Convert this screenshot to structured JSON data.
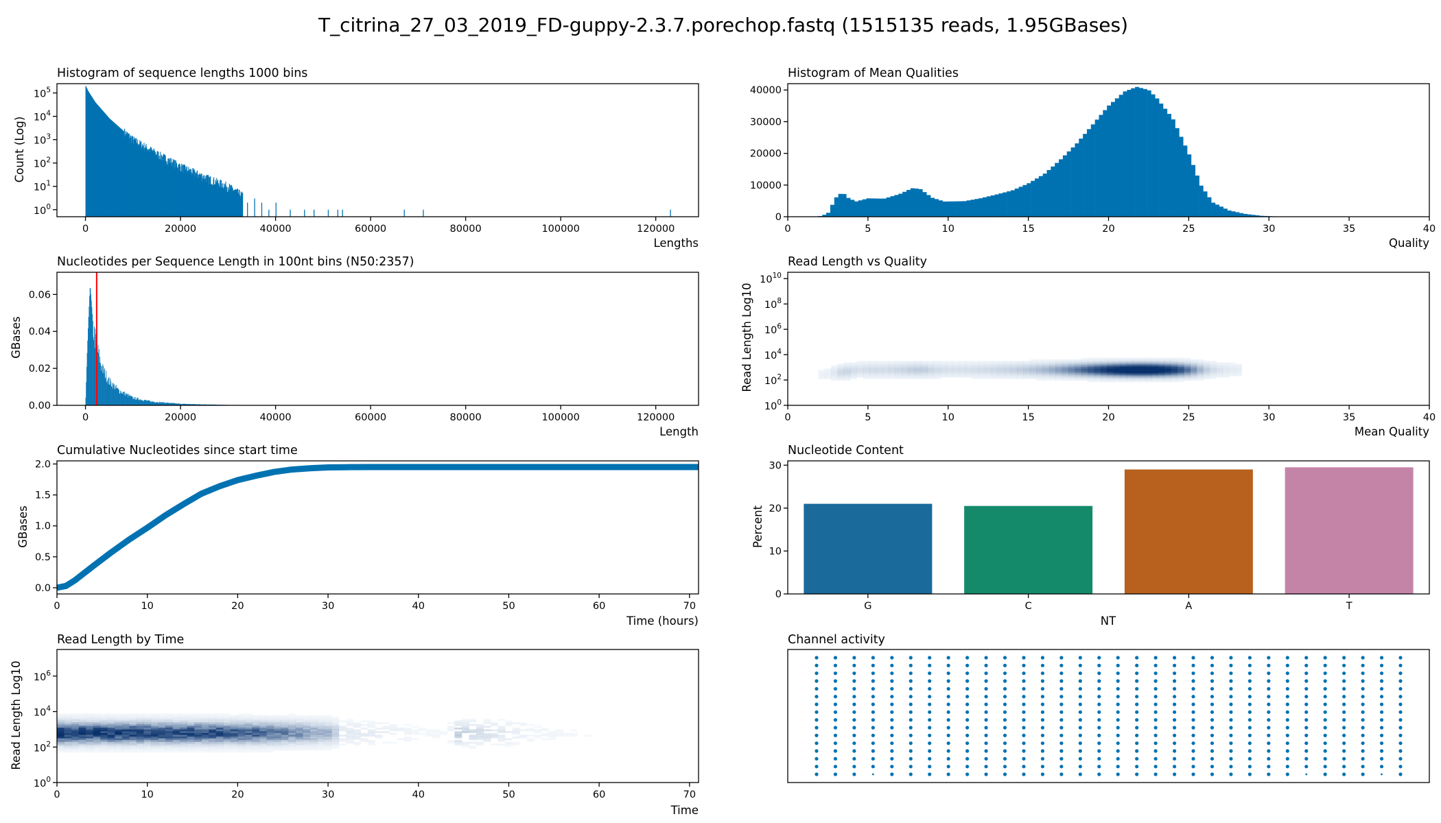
{
  "title": "T_citrina_27_03_2019_FD-guppy-2.3.7.porechop.fastq (1515135 reads, 1.95GBases)",
  "colors": {
    "blue": "#0072b2",
    "red": "#ff0000",
    "nt": [
      "#1a6a9c",
      "#158a6a",
      "#b8611e",
      "#c484a8"
    ],
    "dense": "#08306b"
  },
  "chart_data": [
    {
      "id": "len_hist",
      "type": "bar",
      "title": "Histogram of sequence lengths 1000 bins",
      "xlabel": "Lengths",
      "ylabel": "Count (Log)",
      "xlim": [
        -6000,
        129000
      ],
      "ylim": [
        0.5,
        250000
      ],
      "yscale": "log",
      "xticks": [
        0,
        20000,
        40000,
        60000,
        80000,
        100000,
        120000
      ],
      "yticks": [
        {
          "v": 1,
          "l": "10",
          "e": "0"
        },
        {
          "v": 10,
          "l": "10",
          "e": "1"
        },
        {
          "v": 100,
          "l": "10",
          "e": "2"
        },
        {
          "v": 1000,
          "l": "10",
          "e": "3"
        },
        {
          "v": 10000,
          "l": "10",
          "e": "4"
        },
        {
          "v": 100000,
          "l": "10",
          "e": "5"
        }
      ],
      "envelope": [
        [
          0,
          200000
        ],
        [
          500,
          120000
        ],
        [
          2000,
          40000
        ],
        [
          5000,
          8000
        ],
        [
          10000,
          1000
        ],
        [
          15000,
          250
        ],
        [
          20000,
          70
        ],
        [
          25000,
          25
        ],
        [
          30000,
          10
        ],
        [
          33000,
          4
        ]
      ],
      "outliers": [
        [
          34000,
          2
        ],
        [
          35500,
          3
        ],
        [
          37000,
          2
        ],
        [
          38500,
          1
        ],
        [
          40000,
          2
        ],
        [
          43000,
          1
        ],
        [
          46000,
          1
        ],
        [
          48000,
          1
        ],
        [
          51000,
          1
        ],
        [
          53000,
          1
        ],
        [
          54000,
          1
        ],
        [
          67000,
          1
        ],
        [
          71000,
          1
        ],
        [
          123000,
          1
        ]
      ]
    },
    {
      "id": "qual_hist",
      "type": "bar",
      "title": "Histogram of Mean Qualities",
      "xlabel": "Quality",
      "ylabel": "",
      "xlim": [
        0,
        40
      ],
      "ylim": [
        0,
        42000
      ],
      "xticks": [
        0,
        5,
        10,
        15,
        20,
        25,
        30,
        35,
        40
      ],
      "yticks": [
        0,
        10000,
        20000,
        30000,
        40000
      ],
      "bin_width": 0.25,
      "profile": [
        [
          1.9,
          0
        ],
        [
          2.5,
          1000
        ],
        [
          3.0,
          6000
        ],
        [
          3.25,
          7200
        ],
        [
          3.5,
          7300
        ],
        [
          3.75,
          6000
        ],
        [
          4.25,
          4800
        ],
        [
          5.0,
          5800
        ],
        [
          6.0,
          5700
        ],
        [
          7.0,
          7200
        ],
        [
          7.75,
          9000
        ],
        [
          8.25,
          8800
        ],
        [
          9.0,
          6000
        ],
        [
          9.75,
          4800
        ],
        [
          11.0,
          4900
        ],
        [
          12.0,
          5800
        ],
        [
          13.0,
          7000
        ],
        [
          14.0,
          8300
        ],
        [
          15.0,
          10500
        ],
        [
          16.0,
          13500
        ],
        [
          17.0,
          18000
        ],
        [
          18.0,
          23000
        ],
        [
          19.0,
          29000
        ],
        [
          20.0,
          35000
        ],
        [
          21.0,
          39500
        ],
        [
          21.75,
          41000
        ],
        [
          22.5,
          40000
        ],
        [
          23.0,
          37500
        ],
        [
          24.0,
          31000
        ],
        [
          25.0,
          20000
        ],
        [
          25.75,
          10000
        ],
        [
          26.5,
          4500
        ],
        [
          27.5,
          2000
        ],
        [
          28.5,
          900
        ],
        [
          29.5,
          300
        ],
        [
          30.5,
          80
        ],
        [
          31.5,
          0
        ]
      ]
    },
    {
      "id": "nt_per_len",
      "type": "bar",
      "title": "Nucleotides per Sequence Length in 100nt bins (N50:2357)",
      "xlabel": "Length",
      "ylabel": "GBases",
      "xlim": [
        -6000,
        129000
      ],
      "ylim": [
        0,
        0.072
      ],
      "xticks": [
        0,
        20000,
        40000,
        60000,
        80000,
        100000,
        120000
      ],
      "yticks": [
        0,
        0.02,
        0.04,
        0.06
      ],
      "n50": 2357,
      "profile": [
        [
          0,
          0.0
        ],
        [
          300,
          0.025
        ],
        [
          600,
          0.045
        ],
        [
          900,
          0.062
        ],
        [
          1000,
          0.065
        ],
        [
          1300,
          0.055
        ],
        [
          1700,
          0.04
        ],
        [
          2500,
          0.03
        ],
        [
          3500,
          0.02
        ],
        [
          5000,
          0.013
        ],
        [
          7000,
          0.008
        ],
        [
          10000,
          0.004
        ],
        [
          14000,
          0.002
        ],
        [
          20000,
          0.0008
        ],
        [
          30000,
          0.0002
        ],
        [
          40000,
          5e-05
        ],
        [
          45000,
          0.0
        ]
      ]
    },
    {
      "id": "len_vs_qual",
      "type": "heatmap",
      "title": "Read Length vs Quality",
      "xlabel": "Mean Quality",
      "ylabel": "Read Length Log10",
      "xlim": [
        0,
        40
      ],
      "ylim_log10": [
        0,
        10.5
      ],
      "xticks": [
        0,
        5,
        10,
        15,
        20,
        25,
        30,
        35,
        40
      ],
      "yticks": [
        {
          "v": 0,
          "l": "10",
          "e": "0"
        },
        {
          "v": 2,
          "l": "10",
          "e": "2"
        },
        {
          "v": 4,
          "l": "10",
          "e": "4"
        },
        {
          "v": 6,
          "l": "10",
          "e": "6"
        },
        {
          "v": 8,
          "l": "10",
          "e": "8"
        },
        {
          "v": 10,
          "l": "10",
          "e": "10"
        }
      ]
    },
    {
      "id": "cumulative",
      "type": "line",
      "title": "Cumulative Nucleotides since start time",
      "xlabel": "Time (hours)",
      "ylabel": "GBases",
      "xlim": [
        0,
        71
      ],
      "ylim": [
        -0.1,
        2.05
      ],
      "xticks": [
        0,
        10,
        20,
        30,
        40,
        50,
        60,
        70
      ],
      "yticks": [
        0.0,
        0.5,
        1.0,
        1.5,
        2.0
      ],
      "x": [
        0,
        1,
        2,
        4,
        6,
        8,
        10,
        12,
        14,
        16,
        18,
        20,
        22,
        24,
        26,
        28,
        30,
        32,
        35,
        40,
        45,
        50,
        60,
        71
      ],
      "y": [
        0.0,
        0.03,
        0.12,
        0.35,
        0.57,
        0.78,
        0.97,
        1.17,
        1.35,
        1.52,
        1.64,
        1.74,
        1.81,
        1.87,
        1.91,
        1.93,
        1.945,
        1.948,
        1.95,
        1.95,
        1.95,
        1.95,
        1.95,
        1.95
      ]
    },
    {
      "id": "nt_content",
      "type": "bar",
      "title": "Nucleotide Content",
      "xlabel": "NT",
      "ylabel": "Percent",
      "ylim": [
        0,
        31
      ],
      "yticks": [
        0,
        10,
        20,
        30
      ],
      "categories": [
        "G",
        "C",
        "A",
        "T"
      ],
      "values": [
        21.0,
        20.5,
        29.0,
        29.5
      ]
    },
    {
      "id": "len_by_time",
      "type": "heatmap",
      "title": "Read Length by Time",
      "xlabel": "Time",
      "ylabel": "Read Length Log10",
      "xlim": [
        0,
        71
      ],
      "ylim_log10": [
        0,
        7.5
      ],
      "xticks": [
        0,
        10,
        20,
        30,
        40,
        50,
        60,
        70
      ],
      "yticks": [
        {
          "v": 0,
          "l": "10",
          "e": "0"
        },
        {
          "v": 2,
          "l": "10",
          "e": "2"
        },
        {
          "v": 4,
          "l": "10",
          "e": "4"
        },
        {
          "v": 6,
          "l": "10",
          "e": "6"
        }
      ]
    },
    {
      "id": "channels",
      "type": "scatter",
      "title": "Channel activity",
      "columns": 32,
      "rows": 16
    }
  ]
}
